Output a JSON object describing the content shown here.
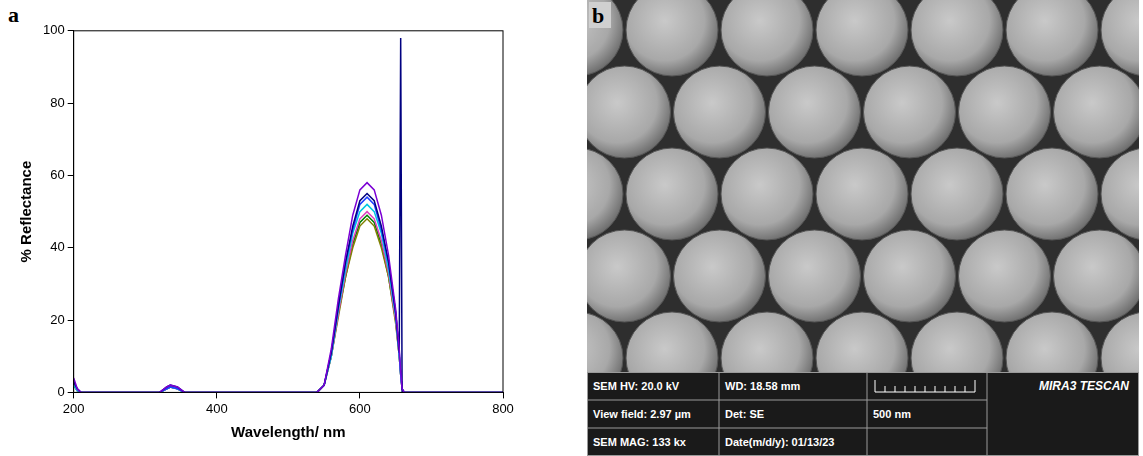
{
  "chart_data": {
    "type": "line",
    "panel_label": "a",
    "x_label": "Wavelength/ nm",
    "y_label": "% Reflectance",
    "x": [
      200,
      205,
      210,
      320,
      330,
      335,
      345,
      355,
      400,
      540,
      550,
      560,
      570,
      580,
      590,
      600,
      610,
      620,
      630,
      640,
      650,
      655,
      657,
      659,
      662,
      700,
      800
    ],
    "series": [
      {
        "color": "#7b00d4",
        "values": [
          4,
          1,
          0,
          0,
          1.5,
          2,
          1.5,
          0,
          0,
          0,
          2,
          12,
          26,
          38,
          49,
          56,
          58,
          56,
          49,
          38,
          23,
          12,
          6,
          1,
          0,
          0,
          0
        ]
      },
      {
        "color": "#000080",
        "values": [
          3,
          1,
          0,
          0,
          1.5,
          2,
          1.5,
          0,
          0,
          0,
          2,
          11,
          24,
          36,
          46,
          53,
          55,
          53,
          46,
          36,
          22,
          11,
          98,
          0,
          0,
          0,
          0
        ]
      },
      {
        "color": "#1f3fff",
        "values": [
          3,
          1,
          0,
          0,
          1,
          1.5,
          1,
          0,
          0,
          0,
          2,
          11,
          24,
          36,
          45,
          52,
          54,
          52,
          45,
          36,
          22,
          11,
          5,
          1,
          0,
          0,
          0
        ]
      },
      {
        "color": "#00c8e0",
        "values": [
          2,
          0.5,
          0,
          0,
          1,
          1.5,
          1,
          0,
          0,
          0,
          2,
          10,
          23,
          34,
          44,
          50,
          52,
          50,
          44,
          34,
          21,
          10,
          5,
          1,
          0,
          0,
          0
        ]
      },
      {
        "color": "#e040c0",
        "values": [
          2,
          0.5,
          0,
          0,
          1,
          1.5,
          1,
          0,
          0,
          0,
          2,
          10,
          22,
          33,
          42,
          48,
          50,
          48,
          42,
          33,
          20,
          10,
          5,
          1,
          0,
          0,
          0
        ]
      },
      {
        "color": "#808000",
        "values": [
          2,
          0.5,
          0,
          0,
          1,
          1.5,
          1,
          0,
          0,
          0,
          2,
          10,
          21,
          32,
          40,
          46,
          48,
          46,
          40,
          32,
          19,
          10,
          5,
          1,
          0,
          0,
          0
        ]
      },
      {
        "color": "#008000",
        "values": [
          2,
          0.5,
          0,
          0,
          1,
          1.5,
          1,
          0,
          0,
          0,
          2,
          10,
          22,
          32,
          41,
          47,
          49,
          47,
          41,
          32,
          20,
          10,
          5,
          1,
          0,
          0,
          0
        ]
      }
    ],
    "xlim": [
      200,
      800
    ],
    "xticks": [
      200,
      400,
      600,
      800
    ],
    "ylim": [
      0,
      100
    ],
    "yticks": [
      0,
      20,
      40,
      60,
      80,
      100
    ],
    "grid": false
  },
  "sem_image": {
    "panel_label": "b",
    "info_bar": {
      "rows": [
        [
          "SEM HV: 20.0 kV",
          "WD: 18.58 mm"
        ],
        [
          "View field: 2.97 µm",
          "Det: SE"
        ],
        [
          "SEM MAG: 133 kx",
          "Date(m/d/y): 01/13/23"
        ]
      ],
      "scale_bar": "500 nm",
      "brand": "MIRA3 TESCAN"
    }
  }
}
